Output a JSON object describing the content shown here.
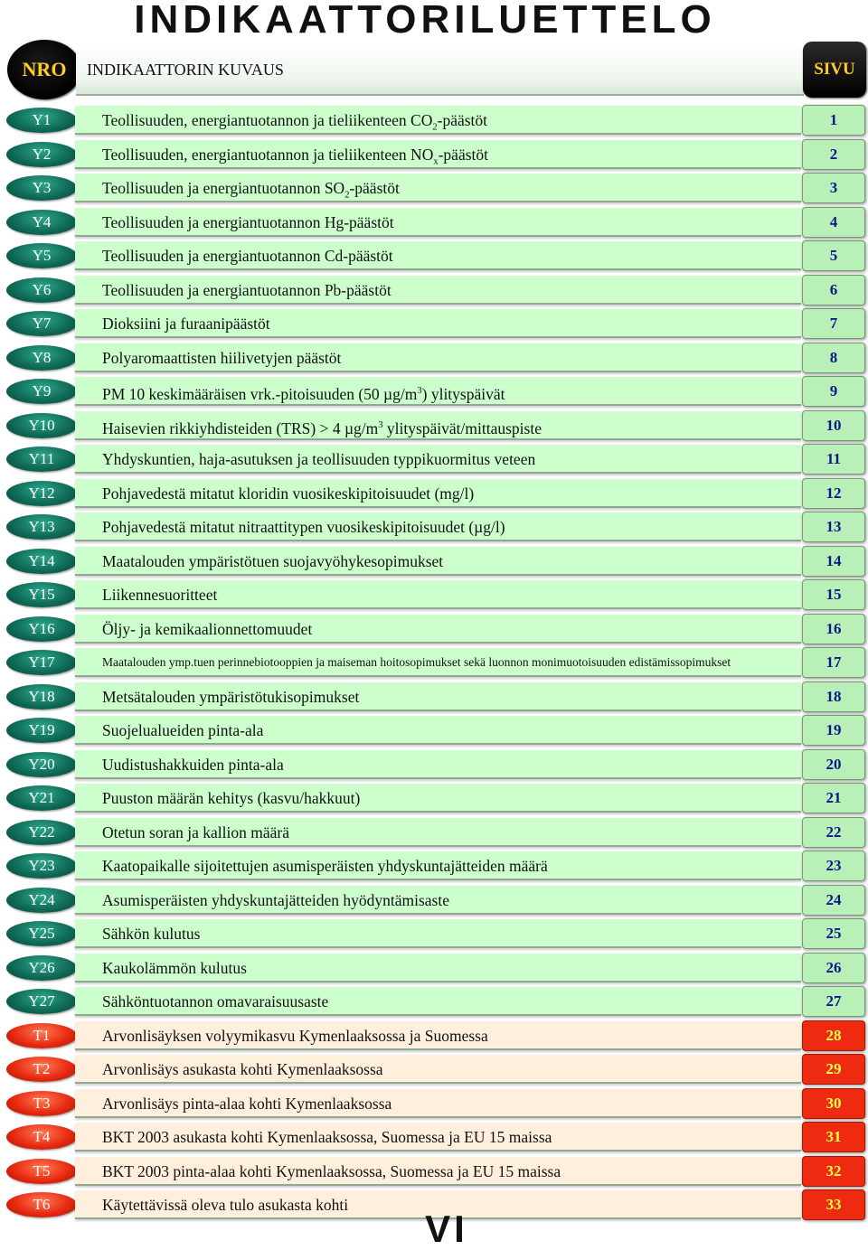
{
  "title": "INDIKAATTORILUETTELO",
  "header": {
    "nro": "NRO",
    "description": "INDIKAATTORIN KUVAUS",
    "sivu": "SIVU"
  },
  "colors": {
    "green_badge": "#0f6b58",
    "red_badge": "#e82a10",
    "green_row": "#ccffcc",
    "red_page": "#ee2a10",
    "green_page_text": "#0a1a8a",
    "red_page_text": "#ffff44"
  },
  "rows": [
    {
      "nro": "Y1",
      "parts": [
        {
          "t": "Teollisuuden, energiantuotannon ja tieliikenteen CO"
        },
        {
          "t": "2",
          "sub": true
        },
        {
          "t": "-päästöt"
        }
      ],
      "page": "1",
      "group": "green"
    },
    {
      "nro": "Y2",
      "parts": [
        {
          "t": "Teollisuuden, energiantuotannon ja tieliikenteen NO"
        },
        {
          "t": "x",
          "sub": true
        },
        {
          "t": "-päästöt"
        }
      ],
      "page": "2",
      "group": "green"
    },
    {
      "nro": "Y3",
      "parts": [
        {
          "t": "Teollisuuden ja energiantuotannon SO"
        },
        {
          "t": "2",
          "sub": true
        },
        {
          "t": "-päästöt"
        }
      ],
      "page": "3",
      "group": "green"
    },
    {
      "nro": "Y4",
      "parts": [
        {
          "t": "Teollisuuden ja energiantuotannon Hg-päästöt"
        }
      ],
      "page": "4",
      "group": "green"
    },
    {
      "nro": "Y5",
      "parts": [
        {
          "t": "Teollisuuden ja energiantuotannon Cd-päästöt"
        }
      ],
      "page": "5",
      "group": "green"
    },
    {
      "nro": "Y6",
      "parts": [
        {
          "t": "Teollisuuden ja energiantuotannon Pb-päästöt"
        }
      ],
      "page": "6",
      "group": "green"
    },
    {
      "nro": "Y7",
      "parts": [
        {
          "t": "Dioksiini ja furaanipäästöt"
        }
      ],
      "page": "7",
      "group": "green"
    },
    {
      "nro": "Y8",
      "parts": [
        {
          "t": "Polyaromaattisten hiilivetyjen päästöt"
        }
      ],
      "page": "8",
      "group": "green"
    },
    {
      "nro": "Y9",
      "parts": [
        {
          "t": "PM 10 keskimääräisen vrk.-pitoisuuden (50 µg/m"
        },
        {
          "t": "3",
          "sup": true
        },
        {
          "t": ") ylityspäivät"
        }
      ],
      "page": "9",
      "group": "green"
    },
    {
      "nro": "Y10",
      "parts": [
        {
          "t": "Haisevien rikkiyhdisteiden (TRS) > 4 µg/m"
        },
        {
          "t": "3",
          "sup": true
        },
        {
          "t": " ylityspäivät/mittauspiste"
        }
      ],
      "page": "10",
      "group": "green"
    },
    {
      "nro": "Y11",
      "parts": [
        {
          "t": "Yhdyskuntien, haja-asutuksen ja teollisuuden typpikuormitus veteen"
        }
      ],
      "page": "11",
      "group": "green"
    },
    {
      "nro": "Y12",
      "parts": [
        {
          "t": "Pohjavedestä mitatut kloridin vuosikeskipitoisuudet (mg/l)"
        }
      ],
      "page": "12",
      "group": "green"
    },
    {
      "nro": "Y13",
      "parts": [
        {
          "t": "Pohjavedestä mitatut nitraattitypen vuosikeskipitoisuudet (µg/l)"
        }
      ],
      "page": "13",
      "group": "green"
    },
    {
      "nro": "Y14",
      "parts": [
        {
          "t": "Maatalouden ympäristötuen suojavyöhykesopimukset"
        }
      ],
      "page": "14",
      "group": "green"
    },
    {
      "nro": "Y15",
      "parts": [
        {
          "t": "Liikennesuoritteet"
        }
      ],
      "page": "15",
      "group": "green"
    },
    {
      "nro": "Y16",
      "parts": [
        {
          "t": "Öljy- ja kemikaalionnettomuudet"
        }
      ],
      "page": "16",
      "group": "green"
    },
    {
      "nro": "Y17",
      "parts": [
        {
          "t": "Maatalouden ymp.tuen perinnebiotooppien ja maiseman hoitosopimukset sekä luonnon monimuotoisuuden edistämissopimukset"
        }
      ],
      "page": "17",
      "group": "green",
      "small": true
    },
    {
      "nro": "Y18",
      "parts": [
        {
          "t": "Metsätalouden ympäristötukisopimukset"
        }
      ],
      "page": "18",
      "group": "green"
    },
    {
      "nro": "Y19",
      "parts": [
        {
          "t": "Suojelualueiden pinta-ala"
        }
      ],
      "page": "19",
      "group": "green"
    },
    {
      "nro": "Y20",
      "parts": [
        {
          "t": "Uudistushakkuiden pinta-ala"
        }
      ],
      "page": "20",
      "group": "green"
    },
    {
      "nro": "Y21",
      "parts": [
        {
          "t": "Puuston määrän kehitys (kasvu/hakkuut)"
        }
      ],
      "page": "21",
      "group": "green"
    },
    {
      "nro": "Y22",
      "parts": [
        {
          "t": "Otetun soran ja kallion määrä"
        }
      ],
      "page": "22",
      "group": "green"
    },
    {
      "nro": "Y23",
      "parts": [
        {
          "t": "Kaatopaikalle sijoitettujen asumisperäisten yhdyskuntajätteiden määrä"
        }
      ],
      "page": "23",
      "group": "green"
    },
    {
      "nro": "Y24",
      "parts": [
        {
          "t": "Asumisperäisten yhdyskuntajätteiden hyödyntämisaste"
        }
      ],
      "page": "24",
      "group": "green"
    },
    {
      "nro": "Y25",
      "parts": [
        {
          "t": "Sähkön kulutus"
        }
      ],
      "page": "25",
      "group": "green"
    },
    {
      "nro": "Y26",
      "parts": [
        {
          "t": "Kaukolämmön kulutus"
        }
      ],
      "page": "26",
      "group": "green"
    },
    {
      "nro": "Y27",
      "parts": [
        {
          "t": "Sähköntuotannon omavaraisuusaste"
        }
      ],
      "page": "27",
      "group": "green"
    },
    {
      "nro": "T1",
      "parts": [
        {
          "t": "Arvonlisäyksen volyymikasvu Kymenlaaksossa ja Suomessa"
        }
      ],
      "page": "28",
      "group": "red"
    },
    {
      "nro": "T2",
      "parts": [
        {
          "t": "Arvonlisäys asukasta kohti Kymenlaaksossa"
        }
      ],
      "page": "29",
      "group": "red"
    },
    {
      "nro": "T3",
      "parts": [
        {
          "t": "Arvonlisäys pinta-alaa kohti Kymenlaaksossa"
        }
      ],
      "page": "30",
      "group": "red"
    },
    {
      "nro": "T4",
      "parts": [
        {
          "t": "BKT 2003 asukasta kohti Kymenlaaksossa, Suomessa ja EU 15 maissa"
        }
      ],
      "page": "31",
      "group": "red"
    },
    {
      "nro": "T5",
      "parts": [
        {
          "t": "BKT 2003 pinta-alaa kohti Kymenlaaksossa, Suomessa ja EU 15 maissa"
        }
      ],
      "page": "32",
      "group": "red"
    },
    {
      "nro": "T6",
      "parts": [
        {
          "t": "Käytettävissä oleva tulo asukasta kohti"
        }
      ],
      "page": "33",
      "group": "red"
    }
  ],
  "footer": "VI"
}
